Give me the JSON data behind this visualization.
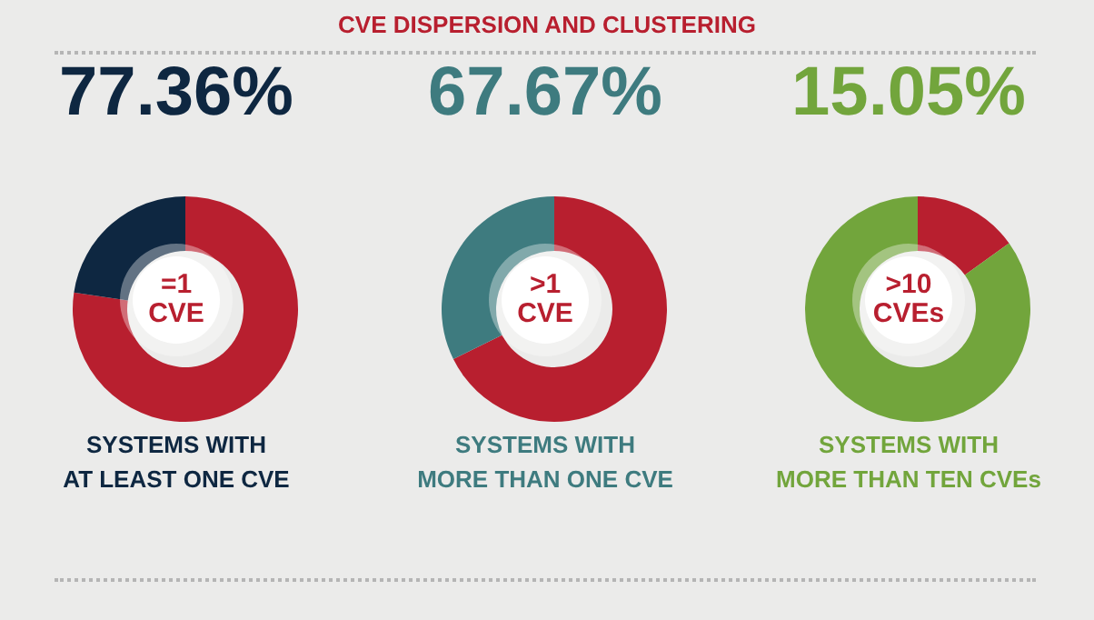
{
  "chart_data": [
    {
      "type": "other",
      "title": "CVE DISPERSION AND CLUSTERING"
    },
    {
      "type": "donut",
      "title": "77.36%",
      "xlabel": "SYSTEMS WITH\nAT LEAST ONE CVE",
      "annotations": [
        "=1 CVE"
      ],
      "categories": [
        null,
        null
      ],
      "values": [
        77.36,
        22.64
      ],
      "colors": [
        "#b81f2f",
        "#0e2741"
      ]
    },
    {
      "type": "donut",
      "title": "67.67%",
      "xlabel": "SYSTEMS WITH\nMORE THAN ONE CVE",
      "annotations": [
        ">1 CVE"
      ],
      "categories": [
        null,
        null
      ],
      "values": [
        67.67,
        32.33
      ],
      "colors": [
        "#b81f2f",
        "#3e7b7f"
      ]
    },
    {
      "type": "donut",
      "title": "15.05%",
      "xlabel": "SYSTEMS WITH\nMORE THAN TEN CVEs",
      "annotations": [
        ">10 CVEs"
      ],
      "categories": [
        null,
        null
      ],
      "values": [
        15.05,
        84.95
      ],
      "colors": [
        "#b81f2f",
        "#72a53c"
      ]
    }
  ]
}
